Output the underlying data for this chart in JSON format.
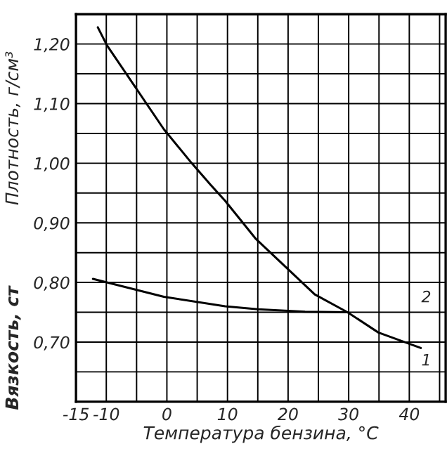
{
  "chart_data": {
    "type": "line",
    "xlabel": "Температура бензина, °C",
    "ylabel": "Плотность, г/см³",
    "annotations": [
      "Вязкость, ст"
    ],
    "series": [
      {
        "name": "1",
        "color": "#000000",
        "x": [
          -11.4,
          -9.9,
          -0.5,
          4.1,
          7.2,
          9.6,
          14.6,
          24.4,
          29.8,
          34.9,
          41.9
        ],
        "values": [
          1.228,
          1.198,
          1.057,
          1.0,
          0.964,
          0.937,
          0.874,
          0.78,
          0.75,
          0.716,
          0.69
        ]
      },
      {
        "name": "2",
        "color": "#000000",
        "x": [
          -12.2,
          -0.5,
          9.6,
          15,
          22.8,
          29.8
        ],
        "values": [
          0.806,
          0.776,
          0.76,
          0.755,
          0.751,
          0.75
        ]
      }
    ],
    "xlim": [
      -15,
      46
    ],
    "xticks": [
      -15,
      -10,
      {
        "value": -5,
        "label": null
      },
      0,
      {
        "value": 5,
        "label": null
      },
      10,
      {
        "value": 15,
        "label": null
      },
      20,
      {
        "value": 25,
        "label": null
      },
      30,
      {
        "value": 35,
        "label": null
      },
      40,
      {
        "value": 45,
        "label": null
      }
    ],
    "ylim": [
      0.6,
      1.25
    ],
    "yticks": [
      {
        "value": 0.65,
        "label": null
      },
      {
        "value": 0.7,
        "label": "0,70"
      },
      {
        "value": 0.75,
        "label": null
      },
      {
        "value": 0.8,
        "label": "0,80"
      },
      {
        "value": 0.85,
        "label": null
      },
      {
        "value": 0.9,
        "label": "0,90"
      },
      {
        "value": 0.95,
        "label": null
      },
      {
        "value": 1.0,
        "label": "1,00"
      },
      {
        "value": 1.05,
        "label": null
      },
      {
        "value": 1.1,
        "label": "1,10"
      },
      {
        "value": 1.15,
        "label": null
      },
      {
        "value": 1.2,
        "label": "1,20"
      }
    ],
    "grid": true,
    "marker": "none",
    "line_style": "solid"
  }
}
